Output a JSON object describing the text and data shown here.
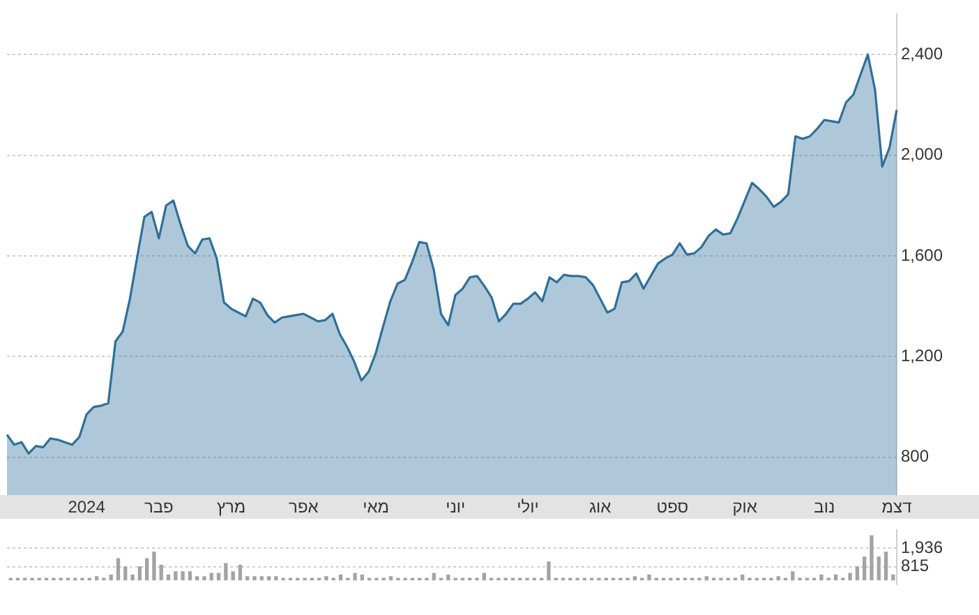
{
  "chart_data": [
    {
      "type": "area",
      "color": "#2e6f9a",
      "marker": "none",
      "grid": "y",
      "tick_labels": "xy",
      "categories": [
        null,
        null,
        null,
        null,
        null,
        null,
        null,
        null,
        null,
        null,
        null,
        "2024",
        null,
        null,
        null,
        null,
        null,
        null,
        null,
        null,
        null,
        "פבר",
        null,
        null,
        null,
        null,
        null,
        null,
        null,
        null,
        null,
        "מרץ",
        null,
        null,
        null,
        null,
        null,
        null,
        null,
        null,
        null,
        "אפר",
        null,
        null,
        null,
        null,
        null,
        null,
        null,
        null,
        null,
        "מאי",
        null,
        null,
        null,
        null,
        null,
        null,
        null,
        null,
        null,
        null,
        "יוני",
        null,
        null,
        null,
        null,
        null,
        null,
        null,
        null,
        null,
        "יולי",
        null,
        null,
        null,
        null,
        null,
        null,
        null,
        null,
        null,
        "אוג",
        null,
        null,
        null,
        null,
        null,
        null,
        null,
        null,
        null,
        "ספט",
        null,
        null,
        null,
        null,
        null,
        null,
        null,
        null,
        null,
        "אוק",
        null,
        null,
        null,
        null,
        null,
        null,
        null,
        null,
        null,
        null,
        "נוב",
        null,
        null,
        null,
        null,
        null,
        null,
        null,
        null,
        null,
        "דצמ"
      ],
      "values": [
        890,
        850,
        860,
        815,
        845,
        840,
        875,
        870,
        860,
        850,
        880,
        970,
        1000,
        1005,
        1015,
        1260,
        1300,
        1430,
        1595,
        1755,
        1775,
        1670,
        1800,
        1820,
        1725,
        1640,
        1610,
        1665,
        1670,
        1590,
        1415,
        1390,
        1375,
        1360,
        1430,
        1415,
        1365,
        1335,
        1355,
        1360,
        1365,
        1370,
        1355,
        1340,
        1345,
        1370,
        1290,
        1240,
        1180,
        1105,
        1140,
        1215,
        1320,
        1420,
        1490,
        1505,
        1575,
        1655,
        1650,
        1545,
        1370,
        1325,
        1445,
        1470,
        1515,
        1520,
        1480,
        1435,
        1340,
        1370,
        1410,
        1410,
        1430,
        1455,
        1420,
        1515,
        1495,
        1525,
        1520,
        1520,
        1515,
        1485,
        1430,
        1375,
        1390,
        1495,
        1500,
        1530,
        1470,
        1520,
        1570,
        1590,
        1605,
        1650,
        1605,
        1610,
        1635,
        1680,
        1705,
        1685,
        1690,
        1750,
        1820,
        1890,
        1865,
        1835,
        1795,
        1815,
        1845,
        2075,
        2065,
        2075,
        2105,
        2140,
        2135,
        2130,
        2210,
        2240,
        2320,
        2400,
        2260,
        1955,
        2030,
        2180
      ],
      "ylim": [
        650,
        2560
      ],
      "yticks": [
        {
          "value": 800,
          "label": "800"
        },
        {
          "value": 1200,
          "label": "1,200"
        },
        {
          "value": 1600,
          "label": "1,600"
        },
        {
          "value": 2000,
          "label": "2,000"
        },
        {
          "value": 2400,
          "label": "2,400"
        }
      ]
    },
    {
      "type": "bar",
      "color": "#a3a3a3",
      "grid": "y",
      "tick_labels": "y",
      "categories": [
        null,
        null,
        null,
        null,
        null,
        null,
        null,
        null,
        null,
        null,
        null,
        null,
        null,
        null,
        null,
        null,
        null,
        null,
        null,
        null,
        null,
        null,
        null,
        null,
        null,
        null,
        null,
        null,
        null,
        null,
        null,
        null,
        null,
        null,
        null,
        null,
        null,
        null,
        null,
        null,
        null,
        null,
        null,
        null,
        null,
        null,
        null,
        null,
        null,
        null,
        null,
        null,
        null,
        null,
        null,
        null,
        null,
        null,
        null,
        null,
        null,
        null,
        null,
        null,
        null,
        null,
        null,
        null,
        null,
        null,
        null,
        null,
        null,
        null,
        null,
        null,
        null,
        null,
        null,
        null,
        null,
        null,
        null,
        null,
        null,
        null,
        null,
        null,
        null,
        null,
        null,
        null,
        null,
        null,
        null,
        null,
        null,
        null,
        null,
        null,
        null,
        null,
        null,
        null,
        null,
        null,
        null,
        null,
        null,
        null,
        null,
        null,
        null,
        null,
        null,
        null,
        null,
        null,
        null,
        null,
        null,
        null,
        null,
        null
      ],
      "values": [
        100,
        100,
        100,
        100,
        100,
        100,
        100,
        100,
        100,
        100,
        100,
        100,
        200,
        100,
        300,
        1300,
        800,
        300,
        800,
        1300,
        1700,
        900,
        300,
        500,
        500,
        500,
        200,
        200,
        400,
        400,
        1000,
        500,
        900,
        200,
        200,
        200,
        200,
        200,
        100,
        100,
        100,
        100,
        100,
        100,
        200,
        100,
        300,
        100,
        400,
        300,
        100,
        100,
        100,
        200,
        100,
        100,
        100,
        100,
        100,
        400,
        100,
        300,
        100,
        100,
        100,
        100,
        400,
        100,
        100,
        100,
        100,
        100,
        100,
        100,
        100,
        1100,
        100,
        100,
        100,
        100,
        100,
        100,
        100,
        100,
        100,
        100,
        100,
        200,
        100,
        300,
        100,
        100,
        100,
        100,
        100,
        100,
        100,
        200,
        100,
        100,
        100,
        100,
        300,
        100,
        100,
        100,
        100,
        200,
        100,
        500,
        100,
        100,
        100,
        300,
        100,
        300,
        100,
        400,
        800,
        1400,
        2700,
        1400,
        1700,
        300
      ],
      "ylim": [
        -270,
        3040
      ],
      "yticks": [
        {
          "value": 815,
          "label": "815"
        },
        {
          "value": 1936,
          "label": "1,936"
        }
      ]
    }
  ]
}
